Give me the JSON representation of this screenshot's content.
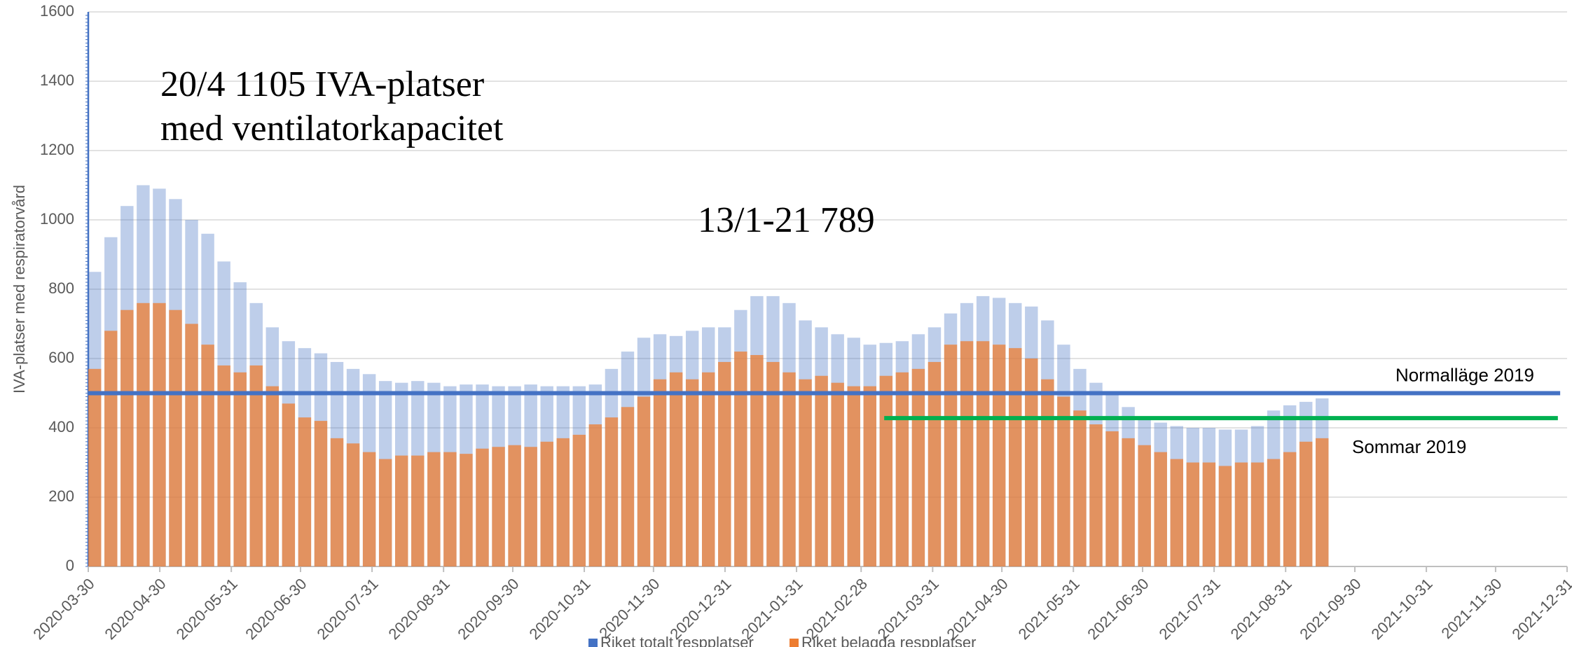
{
  "chart_data": {
    "type": "bar",
    "y_label": "IVA-platser med respiratorvård",
    "x": [
      "2020-03-30",
      "2020-04-06",
      "2020-04-13",
      "2020-04-20",
      "2020-04-27",
      "2020-05-04",
      "2020-05-11",
      "2020-05-18",
      "2020-05-25",
      "2020-06-01",
      "2020-06-08",
      "2020-06-15",
      "2020-06-22",
      "2020-06-29",
      "2020-07-06",
      "2020-07-13",
      "2020-07-20",
      "2020-07-27",
      "2020-08-03",
      "2020-08-10",
      "2020-08-17",
      "2020-08-24",
      "2020-08-31",
      "2020-09-07",
      "2020-09-14",
      "2020-09-21",
      "2020-09-28",
      "2020-10-05",
      "2020-10-12",
      "2020-10-19",
      "2020-10-26",
      "2020-11-02",
      "2020-11-09",
      "2020-11-16",
      "2020-11-23",
      "2020-11-30",
      "2020-12-07",
      "2020-12-14",
      "2020-12-21",
      "2020-12-28",
      "2021-01-04",
      "2021-01-11",
      "2021-01-18",
      "2021-01-25",
      "2021-02-01",
      "2021-02-08",
      "2021-02-15",
      "2021-02-22",
      "2021-03-01",
      "2021-03-08",
      "2021-03-15",
      "2021-03-22",
      "2021-03-29",
      "2021-04-05",
      "2021-04-12",
      "2021-04-19",
      "2021-04-26",
      "2021-05-03",
      "2021-05-10",
      "2021-05-17",
      "2021-05-24",
      "2021-05-31",
      "2021-06-07",
      "2021-06-14",
      "2021-06-21",
      "2021-06-28",
      "2021-07-05",
      "2021-07-12",
      "2021-07-19",
      "2021-07-26",
      "2021-08-02",
      "2021-08-09",
      "2021-08-16",
      "2021-08-23",
      "2021-08-30",
      "2021-09-06",
      "2021-09-13"
    ],
    "series": [
      {
        "name": "Riket totalt respplatser",
        "color": "#4472c4",
        "values": [
          850,
          950,
          1040,
          1100,
          1090,
          1060,
          1000,
          960,
          880,
          820,
          760,
          690,
          650,
          630,
          615,
          590,
          570,
          555,
          535,
          530,
          535,
          530,
          520,
          525,
          525,
          520,
          520,
          525,
          520,
          520,
          520,
          525,
          570,
          620,
          660,
          670,
          665,
          680,
          690,
          690,
          740,
          780,
          780,
          760,
          710,
          690,
          670,
          660,
          640,
          645,
          650,
          670,
          690,
          730,
          760,
          780,
          775,
          760,
          750,
          710,
          640,
          570,
          530,
          500,
          460,
          430,
          415,
          405,
          400,
          400,
          395,
          395,
          405,
          450,
          465,
          475,
          485
        ]
      },
      {
        "name": "Riket belagda respplatser",
        "color": "#ed7d31",
        "values": [
          570,
          680,
          740,
          760,
          760,
          740,
          700,
          640,
          580,
          560,
          580,
          520,
          470,
          430,
          420,
          370,
          355,
          330,
          310,
          320,
          320,
          330,
          330,
          325,
          340,
          345,
          350,
          345,
          360,
          370,
          380,
          410,
          430,
          460,
          490,
          540,
          560,
          540,
          560,
          590,
          620,
          610,
          590,
          560,
          540,
          550,
          530,
          520,
          520,
          550,
          560,
          570,
          590,
          640,
          650,
          650,
          640,
          630,
          600,
          540,
          490,
          450,
          410,
          390,
          370,
          350,
          330,
          310,
          300,
          300,
          290,
          300,
          300,
          310,
          330,
          360,
          370
        ]
      }
    ],
    "reference_lines": [
      {
        "name": "Normalläge 2019",
        "value": 500,
        "color": "#4472c4",
        "start": "2020-03-30",
        "end": "2021-12-28"
      },
      {
        "name": "Sommar 2019",
        "value": 428,
        "color": "#00b050",
        "start": "2021-03-10",
        "end": "2021-12-27"
      }
    ],
    "annotations": [
      {
        "text": [
          "20/4 1105 IVA-platser",
          "med ventilatorkapacitet"
        ]
      },
      {
        "text": [
          "13/1-21 789"
        ]
      }
    ],
    "xlim": [
      "2020-03-30",
      "2021-12-31"
    ],
    "xticks": [
      "2020-03-30",
      "2020-04-30",
      "2020-05-31",
      "2020-06-30",
      "2020-07-31",
      "2020-08-31",
      "2020-09-30",
      "2020-10-31",
      "2020-11-30",
      "2020-12-31",
      "2021-01-31",
      "2021-02-28",
      "2021-03-31",
      "2021-04-30",
      "2021-05-31",
      "2021-06-30",
      "2021-07-31",
      "2021-08-31",
      "2021-09-30",
      "2021-10-31",
      "2021-11-30",
      "2021-12-31"
    ],
    "ylim": [
      0,
      1600
    ],
    "yticks": [
      0,
      200,
      400,
      600,
      800,
      1000,
      1200,
      1400,
      1600
    ],
    "grid": true,
    "legend": "bottom"
  }
}
